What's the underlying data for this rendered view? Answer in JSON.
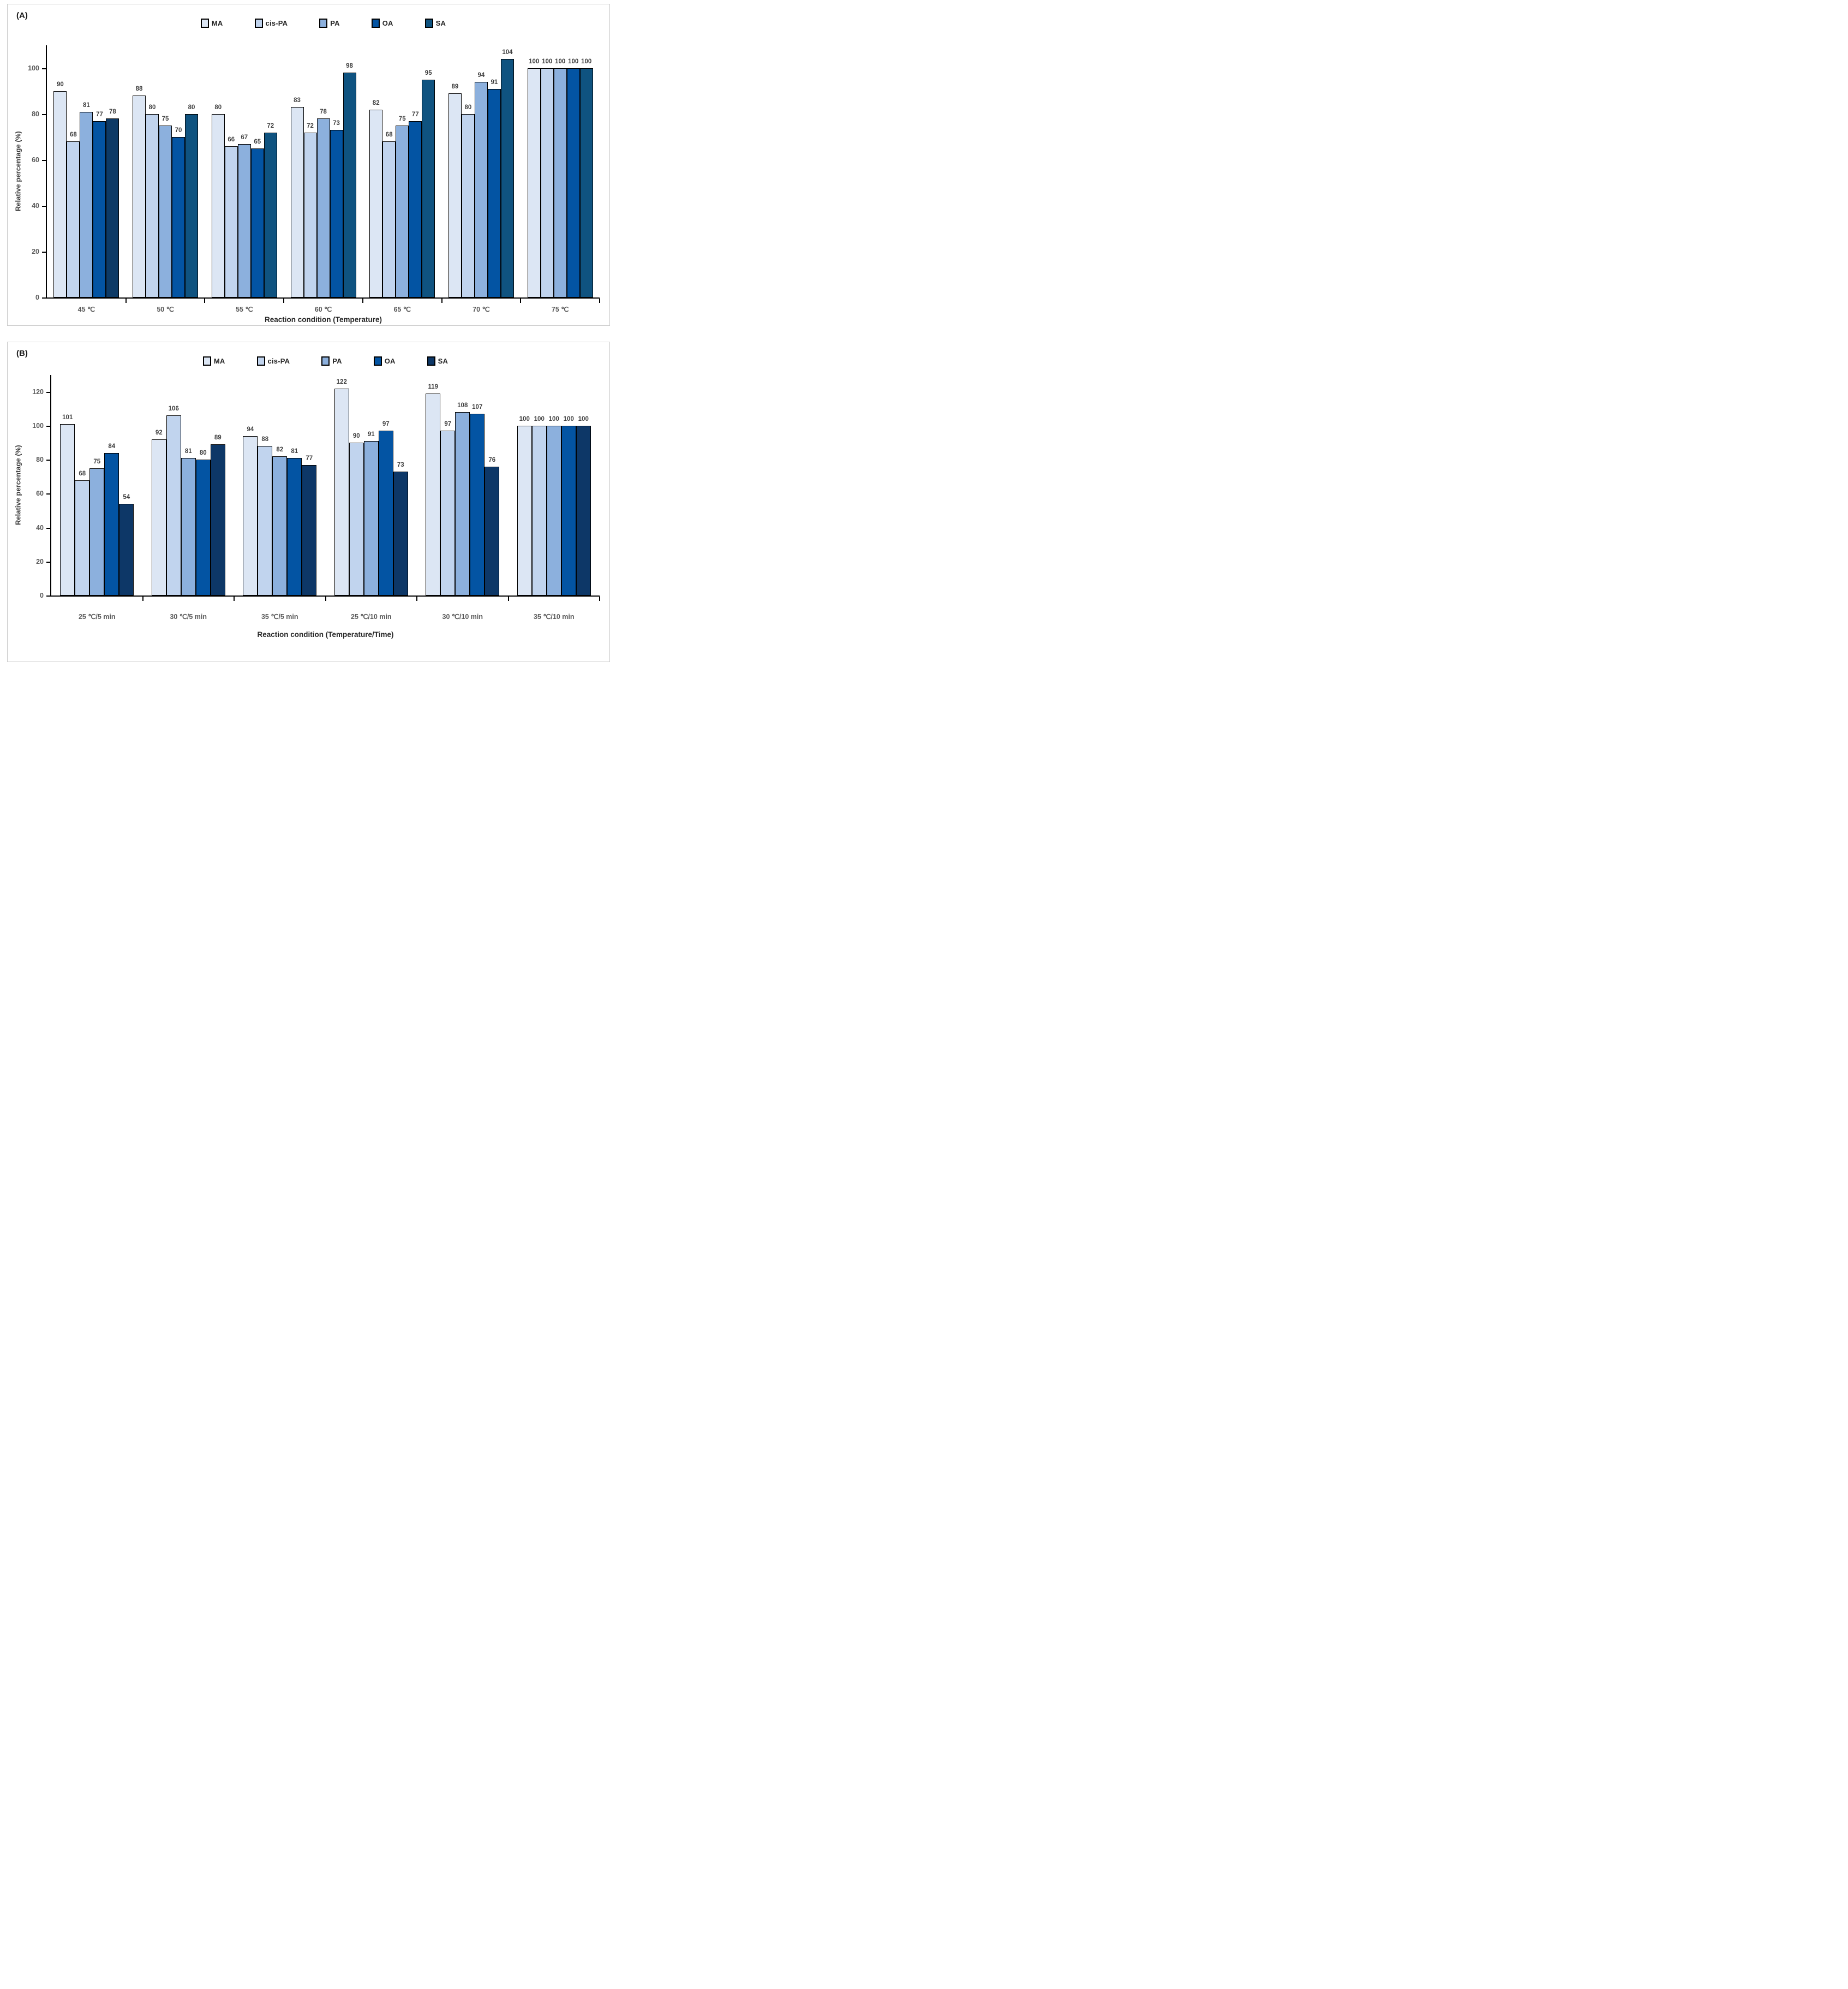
{
  "figure": {
    "background": "#ffffff",
    "panel_border_color": "#c9c9c9"
  },
  "chart_data": [
    {
      "type": "bar",
      "panel_label": "(A)",
      "ylabel": "Relative percentage (%)",
      "xlabel": "Reaction condition (Temperature)",
      "ylim": [
        0,
        110
      ],
      "yticks": [
        0,
        20,
        40,
        60,
        80,
        100
      ],
      "grid": false,
      "legend_position": "top-center",
      "categories": [
        "45 ℃",
        "50 ℃",
        "55 ℃",
        "60 ℃",
        "65 ℃",
        "70 ℃",
        "75 ℃"
      ],
      "series": [
        {
          "name": "MA",
          "color": "#DCE6F4",
          "values": [
            90,
            88,
            80,
            83,
            82,
            89,
            100
          ]
        },
        {
          "name": "cis-PA",
          "color": "#C1D4EE",
          "values": [
            68,
            80,
            66,
            72,
            68,
            80,
            100
          ]
        },
        {
          "name": "PA",
          "color": "#8CB0DD",
          "values": [
            81,
            75,
            67,
            78,
            75,
            94,
            100
          ]
        },
        {
          "name": "OA",
          "color": "#0354A3",
          "values": [
            77,
            70,
            65,
            73,
            77,
            91,
            100
          ]
        },
        {
          "name": "SA",
          "color": "#0F5380",
          "values": [
            78,
            80,
            72,
            98,
            95,
            104,
            100
          ]
        }
      ],
      "color_overrides": [
        {
          "series_index": 4,
          "group_index": 0,
          "color": "#0D3A66"
        }
      ]
    },
    {
      "type": "bar",
      "panel_label": "(B)",
      "ylabel": "Relative percentage (%)",
      "xlabel": "Reaction condition (Temperature/Time)",
      "ylim": [
        0,
        130
      ],
      "yticks": [
        0,
        20,
        40,
        60,
        80,
        100,
        120
      ],
      "grid": false,
      "legend_position": "top-center",
      "categories": [
        "25 ℃/5 min",
        "30 ℃/5 min",
        "35 ℃/5 min",
        "25 ℃/10 min",
        "30 ℃/10 min",
        "35 ℃/10 min"
      ],
      "series": [
        {
          "name": "MA",
          "color": "#DCE6F4",
          "values": [
            101,
            92,
            94,
            122,
            119,
            100
          ]
        },
        {
          "name": "cis-PA",
          "color": "#C1D4EE",
          "values": [
            68,
            106,
            88,
            90,
            97,
            100
          ]
        },
        {
          "name": "PA",
          "color": "#8CB0DD",
          "values": [
            75,
            81,
            82,
            91,
            108,
            100
          ]
        },
        {
          "name": "OA",
          "color": "#0354A3",
          "values": [
            84,
            80,
            81,
            97,
            107,
            100
          ]
        },
        {
          "name": "SA",
          "color": "#0D3767",
          "values": [
            54,
            89,
            77,
            73,
            76,
            100
          ]
        }
      ],
      "color_overrides": []
    }
  ]
}
